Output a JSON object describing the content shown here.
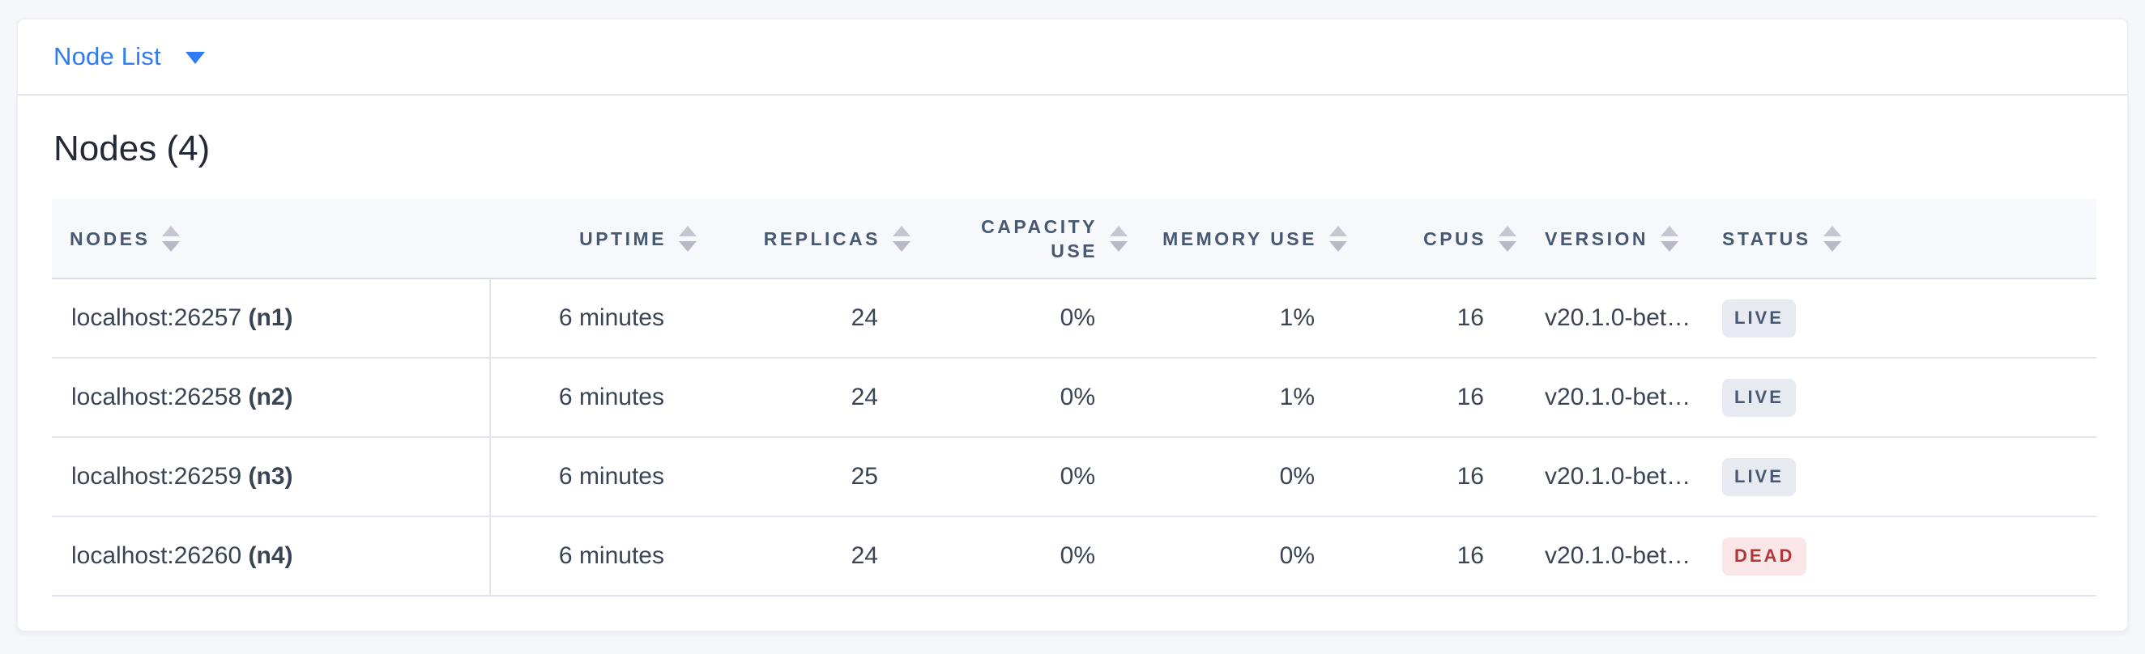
{
  "selector": {
    "label": "Node List"
  },
  "section": {
    "title": "Nodes (4)"
  },
  "table": {
    "columns": [
      {
        "id": "nodes",
        "label": "NODES"
      },
      {
        "id": "uptime",
        "label": "UPTIME"
      },
      {
        "id": "replicas",
        "label": "REPLICAS"
      },
      {
        "id": "capacity_use",
        "label": "CAPACITY USE"
      },
      {
        "id": "memory_use",
        "label": "MEMORY USE"
      },
      {
        "id": "cpus",
        "label": "CPUS"
      },
      {
        "id": "version",
        "label": "VERSION"
      },
      {
        "id": "status",
        "label": "STATUS"
      }
    ],
    "rows": [
      {
        "address": "localhost:26257",
        "id": "(n1)",
        "uptime": "6 minutes",
        "replicas": "24",
        "capacity_use": "0%",
        "memory_use": "1%",
        "cpus": "16",
        "version": "v20.1.0-bet…",
        "status": "LIVE"
      },
      {
        "address": "localhost:26258",
        "id": "(n2)",
        "uptime": "6 minutes",
        "replicas": "24",
        "capacity_use": "0%",
        "memory_use": "1%",
        "cpus": "16",
        "version": "v20.1.0-bet…",
        "status": "LIVE"
      },
      {
        "address": "localhost:26259",
        "id": "(n3)",
        "uptime": "6 minutes",
        "replicas": "25",
        "capacity_use": "0%",
        "memory_use": "0%",
        "cpus": "16",
        "version": "v20.1.0-bet…",
        "status": "LIVE"
      },
      {
        "address": "localhost:26260",
        "id": "(n4)",
        "uptime": "6 minutes",
        "replicas": "24",
        "capacity_use": "0%",
        "memory_use": "0%",
        "cpus": "16",
        "version": "v20.1.0-bet…",
        "status": "DEAD"
      }
    ]
  },
  "colors": {
    "accent_blue": "#2f7cf2",
    "header_text": "#475872",
    "live_bg": "#e7eaf1",
    "live_text": "#475872",
    "dead_bg": "#fae6e6",
    "dead_text": "#b23537"
  }
}
